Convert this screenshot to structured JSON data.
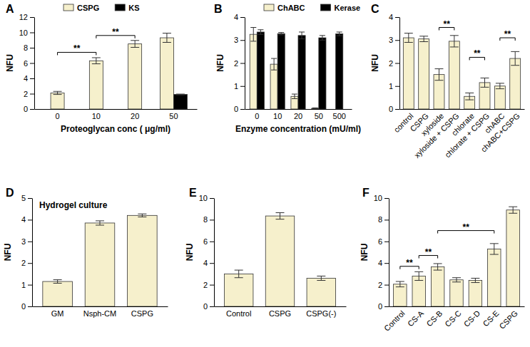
{
  "chart_data": [
    {
      "type": "bar",
      "title": "A",
      "y_label": "NFU",
      "x_label": "Proteoglycan conc ( μg/ml)",
      "categories": [
        "0",
        "10",
        "20",
        "50"
      ],
      "series": [
        {
          "name": "CSPG",
          "color": "#f6f0cc",
          "values": [
            2.1,
            6.3,
            8.5,
            9.3
          ],
          "errors": [
            0.2,
            0.4,
            0.45,
            0.6
          ]
        },
        {
          "name": "KS",
          "color": "#000000",
          "values": [
            null,
            null,
            null,
            1.9
          ],
          "errors": [
            null,
            null,
            null,
            0.05
          ]
        }
      ],
      "ylim": [
        0,
        12
      ],
      "yticks": [
        0,
        2,
        4,
        6,
        8,
        10,
        12
      ],
      "legend": "top",
      "annotations": [
        {
          "text": "**",
          "from": "0",
          "to": "10",
          "y": 7.4
        },
        {
          "text": "**",
          "from": "10",
          "to": "20",
          "y": 9.6
        }
      ]
    },
    {
      "type": "bar",
      "title": "B",
      "y_label": "NFU",
      "x_label": "Enzyme concentration (mU/ml)",
      "categories": [
        "0",
        "10",
        "20",
        "50",
        "500"
      ],
      "series": [
        {
          "name": "ChABC",
          "color": "#f6f0cc",
          "values": [
            3.25,
            1.95,
            0.55,
            0.03,
            null
          ],
          "errors": [
            0.3,
            0.25,
            0.1,
            0.02,
            null
          ]
        },
        {
          "name": "Kerase",
          "color": "#000000",
          "values": [
            3.35,
            3.28,
            3.2,
            3.1,
            3.27
          ],
          "errors": [
            0.1,
            0.05,
            0.15,
            0.1,
            0.08
          ]
        }
      ],
      "ylim": [
        0,
        4
      ],
      "yticks": [
        0,
        1,
        2,
        3,
        4
      ],
      "legend": "top"
    },
    {
      "type": "bar",
      "title": "C",
      "y_label": "NFU",
      "categories": [
        "control",
        "CSPG",
        "xyloside",
        "xyloside + CSPG",
        "chlorate",
        "chlorate + CSPG",
        "chABC",
        "chABC+CSPG"
      ],
      "values": [
        3.1,
        3.05,
        1.5,
        2.95,
        0.55,
        1.15,
        1.0,
        2.2
      ],
      "errors": [
        0.2,
        0.12,
        0.25,
        0.25,
        0.15,
        0.2,
        0.12,
        0.3
      ],
      "color": "#f6f0cc",
      "ylim": [
        0,
        4
      ],
      "yticks": [
        0,
        1,
        2,
        3,
        4
      ],
      "annotations": [
        {
          "text": "**",
          "from": "xyloside",
          "to": "xyloside + CSPG",
          "y": 3.55
        },
        {
          "text": "**",
          "from": "chlorate",
          "to": "chlorate + CSPG",
          "y": 2.25
        },
        {
          "text": "**",
          "from": "chABC",
          "to": "chABC+CSPG",
          "y": 3.1
        }
      ]
    },
    {
      "type": "bar",
      "title": "D",
      "subtitle": "Hydrogel culture",
      "y_label": "NFU",
      "categories": [
        "GM",
        "Nsph-CM",
        "CSPG"
      ],
      "values": [
        1.15,
        3.85,
        4.2
      ],
      "errors": [
        0.08,
        0.1,
        0.07
      ],
      "color": "#f6f0cc",
      "ylim": [
        0,
        5
      ],
      "yticks": [
        0,
        1,
        2,
        3,
        4,
        5
      ]
    },
    {
      "type": "bar",
      "title": "E",
      "y_label": "NFU",
      "categories": [
        "Control",
        "CSPG",
        "CSPG(-)"
      ],
      "values": [
        3.0,
        8.35,
        2.6
      ],
      "errors": [
        0.35,
        0.3,
        0.2
      ],
      "color": "#f6f0cc",
      "ylim": [
        0,
        10
      ],
      "yticks": [
        0,
        2,
        4,
        6,
        8,
        10
      ]
    },
    {
      "type": "bar",
      "title": "F",
      "y_label": "NFU",
      "categories": [
        "Control",
        "CS-A",
        "CS-B",
        "CS-C",
        "CS-D",
        "CS-E",
        "CSPG"
      ],
      "values": [
        2.05,
        2.8,
        3.65,
        2.45,
        2.4,
        5.3,
        8.9
      ],
      "errors": [
        0.25,
        0.4,
        0.3,
        0.2,
        0.2,
        0.5,
        0.3
      ],
      "color": "#f6f0cc",
      "ylim": [
        0,
        10
      ],
      "yticks": [
        0,
        2,
        4,
        6,
        8,
        10
      ],
      "annotations": [
        {
          "text": "**",
          "from": "Control",
          "to": "CS-A",
          "y": 3.7
        },
        {
          "text": "**",
          "from": "CS-A",
          "to": "CS-B",
          "y": 4.7
        },
        {
          "text": "**",
          "from": "CS-B",
          "to": "CS-E",
          "y": 7.0
        }
      ]
    }
  ]
}
